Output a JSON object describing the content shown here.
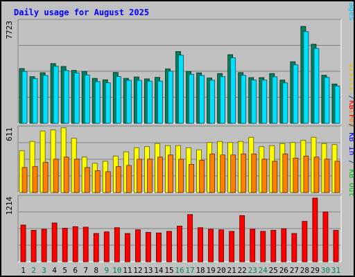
{
  "chart_data": {
    "type": "bar",
    "title": "Daily usage for August 2025",
    "categories": [
      "1",
      "2",
      "3",
      "4",
      "5",
      "6",
      "7",
      "8",
      "9",
      "10",
      "11",
      "12",
      "13",
      "14",
      "15",
      "16",
      "17",
      "18",
      "19",
      "20",
      "21",
      "22",
      "23",
      "24",
      "25",
      "26",
      "27",
      "28",
      "29",
      "30",
      "31"
    ],
    "weekend_days": [
      "2",
      "3",
      "9",
      "10",
      "16",
      "17",
      "23",
      "24",
      "30",
      "31"
    ],
    "panels": [
      {
        "id": "pages-files-hits",
        "max_label": "7723",
        "ylim": [
          0,
          7723
        ],
        "axis_labels": [
          {
            "text": "Hits",
            "color": "#00805c"
          },
          {
            "text": "Files",
            "color": "#0000ff"
          },
          {
            "text": "Pages",
            "color": "#00c0ff"
          }
        ],
        "series": [
          {
            "name": "Hits",
            "color": "#00805c",
            "values": [
              4180,
              3560,
              3860,
              4560,
              4340,
              4040,
              3960,
              3430,
              3320,
              3880,
              3430,
              3540,
              3390,
              3510,
              4150,
              5480,
              3960,
              3850,
              3460,
              3800,
              5240,
              3870,
              3490,
              3490,
              3800,
              3300,
              4700,
              7400,
              6040,
              3670,
              3000
            ]
          },
          {
            "name": "Files",
            "color": "#00e0ff",
            "values": [
              3960,
              3410,
              3650,
              4350,
              4030,
              3850,
              3690,
              3180,
              3090,
              3570,
              3280,
              3280,
              3220,
              3220,
              3980,
              5200,
              3740,
              3650,
              3290,
              3560,
              5000,
              3660,
              3300,
              3300,
              3550,
              3080,
              4460,
              7000,
              5720,
              3500,
              2850
            ]
          }
        ]
      },
      {
        "id": "visits-sites",
        "max_label": "611",
        "ylim": [
          0,
          611
        ],
        "axis_labels": [
          {
            "text": "Visits",
            "color": "#e0c000"
          },
          {
            "text": "/",
            "color": "#005080"
          },
          {
            "text": "Sites",
            "color": "#ff8000"
          }
        ],
        "series": [
          {
            "name": "Visits",
            "color": "#ffff00",
            "values": [
              400,
              490,
              590,
              600,
              620,
              520,
              340,
              280,
              300,
              350,
              390,
              430,
              440,
              470,
              450,
              450,
              430,
              410,
              480,
              490,
              480,
              490,
              530,
              440,
              450,
              470,
              480,
              500,
              530,
              470,
              460
            ]
          },
          {
            "name": "Sites",
            "color": "#ff8000",
            "values": [
              240,
              250,
              290,
              320,
              340,
              320,
              240,
              210,
              200,
              250,
              260,
              320,
              320,
              340,
              360,
              320,
              270,
              310,
              370,
              360,
              360,
              370,
              370,
              320,
              300,
              370,
              330,
              350,
              340,
              320,
              300
            ]
          }
        ]
      },
      {
        "id": "kbf-kbin-kbout",
        "max_label": "1214",
        "ylim": [
          0,
          1214
        ],
        "axis_labels": [
          {
            "text": "KB F",
            "color": "#ff0000"
          },
          {
            "text": "/",
            "color": "#005080"
          },
          {
            "text": "KB In",
            "color": "#0000ff"
          },
          {
            "text": "/",
            "color": "#005080"
          },
          {
            "text": "KB Out",
            "color": "#00c000"
          }
        ],
        "series": [
          {
            "name": "KB F",
            "color": "#ff0000",
            "values": [
              700,
              600,
              620,
              740,
              640,
              670,
              660,
              540,
              570,
              650,
              540,
              610,
              560,
              550,
              580,
              680,
              900,
              650,
              620,
              610,
              580,
              880,
              620,
              580,
              600,
              630,
              540,
              770,
              1214,
              950,
              600
            ]
          }
        ]
      }
    ]
  }
}
